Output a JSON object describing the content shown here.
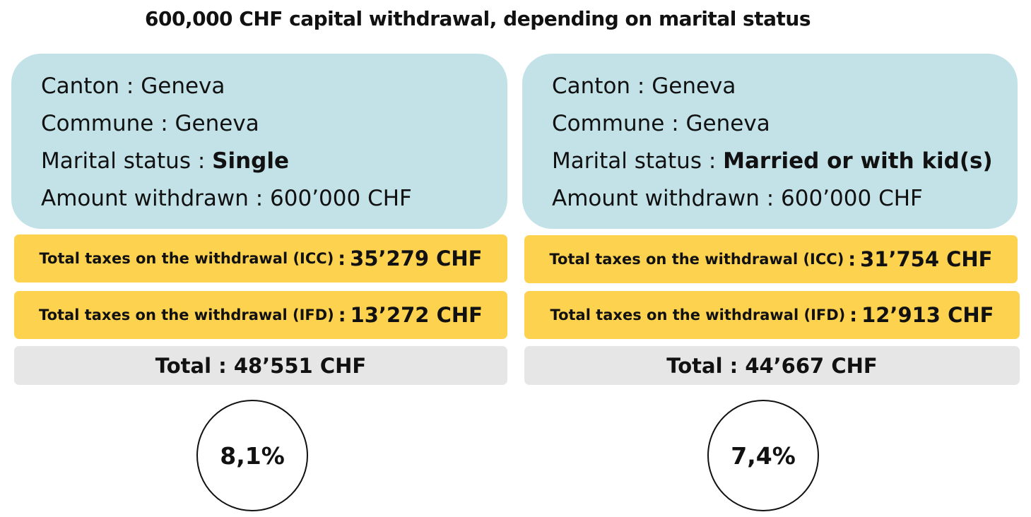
{
  "title": "600,000 CHF capital withdrawal, depending on marital status",
  "scenarios": [
    {
      "canton_label": "Canton : ",
      "canton_value": "Geneva",
      "commune_label": "Commune : ",
      "commune_value": "Geneva",
      "marital_label": "Marital status : ",
      "marital_value": "Single",
      "amount_label": "Amount withdrawn : ",
      "amount_value": "600’000 CHF",
      "icc_label": "Total taxes on the withdrawal (ICC)",
      "icc_sep": ":",
      "icc_value": "35’279 CHF",
      "ifd_label": "Total taxes on the withdrawal (IFD)",
      "ifd_sep": ":",
      "ifd_value": "13’272 CHF",
      "total": "Total : 48’551 CHF",
      "rate": "8,1%"
    },
    {
      "canton_label": "Canton : ",
      "canton_value": "Geneva",
      "commune_label": "Commune : ",
      "commune_value": "Geneva",
      "marital_label": "Marital status : ",
      "marital_value": "Married or with kid(s)",
      "amount_label": "Amount withdrawn : ",
      "amount_value": "600’000 CHF",
      "icc_label": "Total taxes on the withdrawal (ICC)",
      "icc_sep": ":",
      "icc_value": "31’754 CHF",
      "ifd_label": "Total taxes on the withdrawal (IFD)",
      "ifd_sep": ":",
      "ifd_value": "12’913 CHF",
      "total": "Total : 44’667 CHF",
      "rate": "7,4%"
    }
  ],
  "colors": {
    "info_bg": "#c2e2e8",
    "tax_bg": "#fdd24f",
    "total_bg": "#e6e6e6"
  }
}
